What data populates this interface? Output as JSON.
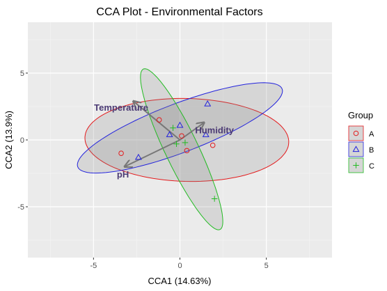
{
  "chart_data": {
    "type": "scatter",
    "title": "CCA Plot - Environmental Factors",
    "xlabel": "CCA1 (14.63%)",
    "ylabel": "CCA2 (13.9%)",
    "xlim": [
      -8.8,
      8.8
    ],
    "ylim": [
      -8.8,
      8.8
    ],
    "xticks": [
      -5,
      0,
      5
    ],
    "yticks": [
      -5,
      0,
      5
    ],
    "grid": true,
    "legend": {
      "title": "Group",
      "position": "right"
    },
    "series": [
      {
        "name": "A",
        "marker": "circle",
        "color": "#e41a1c",
        "points": [
          [
            -3.4,
            -1.0
          ],
          [
            -1.2,
            1.5
          ],
          [
            0.1,
            0.3
          ],
          [
            0.4,
            -0.8
          ],
          [
            1.9,
            -0.4
          ]
        ],
        "ellipse": {
          "center": [
            0.4,
            0.0
          ],
          "semi_major": 5.9,
          "semi_minor": 3.1,
          "angle_deg": -2
        }
      },
      {
        "name": "B",
        "marker": "triangle",
        "color": "#2222dd",
        "points": [
          [
            -2.4,
            -1.3
          ],
          [
            -0.6,
            0.4
          ],
          [
            0.0,
            1.1
          ],
          [
            1.5,
            0.4
          ],
          [
            1.6,
            2.7
          ]
        ],
        "ellipse": {
          "center": [
            0.0,
            0.9
          ],
          "semi_major": 6.6,
          "semi_minor": 1.75,
          "angle_deg": 27
        }
      },
      {
        "name": "C",
        "marker": "plus",
        "color": "#22bb22",
        "points": [
          [
            -0.4,
            0.9
          ],
          [
            -0.2,
            -0.3
          ],
          [
            0.3,
            -0.2
          ],
          [
            2.0,
            -4.4
          ]
        ],
        "ellipse": {
          "center": [
            0.1,
            -0.7
          ],
          "semi_major": 6.4,
          "semi_minor": 1.0,
          "angle_deg": -70
        }
      }
    ],
    "vectors": [
      {
        "name": "Temperature",
        "end": [
          -2.7,
          2.9
        ],
        "label_at": [
          -3.4,
          2.4
        ]
      },
      {
        "name": "Humidity",
        "end": [
          1.4,
          1.3
        ],
        "label_at": [
          2.0,
          0.7
        ]
      },
      {
        "name": "pH",
        "end": [
          -3.2,
          -2.0
        ],
        "label_at": [
          -3.3,
          -2.6
        ]
      }
    ]
  }
}
